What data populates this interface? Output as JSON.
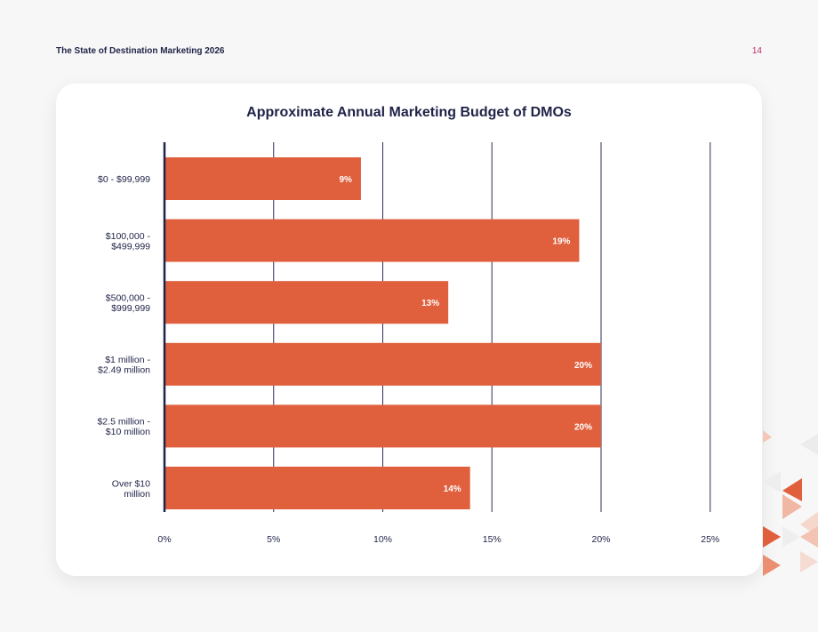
{
  "header": {
    "doc_title": "The State of Destination Marketing 2026",
    "page_number": "14"
  },
  "colors": {
    "bar": "#e05f3d",
    "axis": "#1f2347",
    "grid": "#2d3157",
    "title": "#1f2347",
    "page_number": "#c0306a"
  },
  "chart_data": {
    "type": "bar",
    "orientation": "horizontal",
    "title": "Approximate Annual Marketing Budget of DMOs",
    "categories": [
      [
        "$0 - $99,999"
      ],
      [
        "$100,000 -",
        "$499,999"
      ],
      [
        "$500,000 -",
        "$999,999"
      ],
      [
        "$1 million -",
        "$2.49 million"
      ],
      [
        "$2.5 million -",
        "$10 million"
      ],
      [
        "Over $10",
        "million"
      ]
    ],
    "values": [
      9,
      19,
      13,
      20,
      20,
      14
    ],
    "value_labels": [
      "9%",
      "19%",
      "13%",
      "20%",
      "20%",
      "14%"
    ],
    "xlim": [
      0,
      25
    ],
    "xticks": [
      0,
      5,
      10,
      15,
      20,
      25
    ],
    "xtick_labels": [
      "0%",
      "5%",
      "10%",
      "15%",
      "20%",
      "25%"
    ],
    "grid": true,
    "xlabel": "",
    "ylabel": ""
  }
}
